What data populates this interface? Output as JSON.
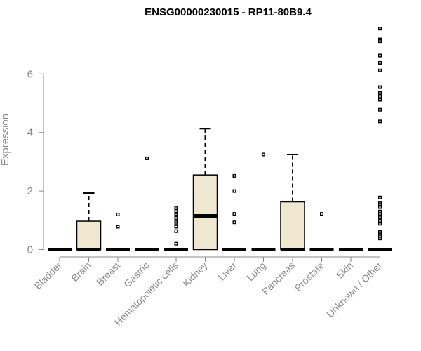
{
  "chart_data": {
    "type": "boxplot",
    "title": "ENSG00000230015 - RP11-80B9.4",
    "xlabel": "",
    "ylabel": "Expression",
    "ylim": [
      0,
      7.6
    ],
    "yticks": [
      0,
      2,
      4,
      6
    ],
    "box_fill": "#efe8cf",
    "categories": [
      "Bladder",
      "Brain",
      "Breast",
      "Gastric",
      "Hematopoietic cells",
      "Kidney",
      "Liver",
      "Lung",
      "Pancreas",
      "Prostate",
      "Skin",
      "Unknown / Other"
    ],
    "boxes": [
      {
        "q1": 0,
        "median": 0,
        "q3": 0,
        "whisker_low": 0,
        "whisker_high": 0,
        "outliers": []
      },
      {
        "q1": 0,
        "median": 0,
        "q3": 0.97,
        "whisker_low": 0,
        "whisker_high": 1.93,
        "outliers": []
      },
      {
        "q1": 0,
        "median": 0,
        "q3": 0,
        "whisker_low": 0,
        "whisker_high": 0,
        "outliers": [
          1.2,
          0.78
        ]
      },
      {
        "q1": 0,
        "median": 0,
        "q3": 0,
        "whisker_low": 0,
        "whisker_high": 0,
        "outliers": [
          3.12
        ]
      },
      {
        "q1": 0,
        "median": 0,
        "q3": 0,
        "whisker_low": 0,
        "whisker_high": 0,
        "outliers": [
          1.43,
          1.38,
          1.33,
          1.28,
          1.23,
          1.18,
          1.13,
          1.08,
          1.03,
          0.98,
          0.93,
          0.88,
          0.83,
          0.78,
          0.63,
          0.2
        ]
      },
      {
        "q1": 0,
        "median": 1.15,
        "q3": 2.55,
        "whisker_low": 0,
        "whisker_high": 4.13,
        "outliers": []
      },
      {
        "q1": 0,
        "median": 0,
        "q3": 0,
        "whisker_low": 0,
        "whisker_high": 0,
        "outliers": [
          2.52,
          2.0,
          1.22,
          0.93
        ]
      },
      {
        "q1": 0,
        "median": 0,
        "q3": 0,
        "whisker_low": 0,
        "whisker_high": 0,
        "outliers": [
          3.25
        ]
      },
      {
        "q1": 0,
        "median": 0,
        "q3": 1.63,
        "whisker_low": 0,
        "whisker_high": 3.25,
        "outliers": []
      },
      {
        "q1": 0,
        "median": 0,
        "q3": 0,
        "whisker_low": 0,
        "whisker_high": 0,
        "outliers": [
          1.22
        ]
      },
      {
        "q1": 0,
        "median": 0,
        "q3": 0,
        "whisker_low": 0,
        "whisker_high": 0,
        "outliers": []
      },
      {
        "q1": 0,
        "median": 0,
        "q3": 0,
        "whisker_low": 0,
        "whisker_high": 0,
        "outliers": [
          7.55,
          7.18,
          7.12,
          6.63,
          6.38,
          6.12,
          5.55,
          5.35,
          5.23,
          5.12,
          4.78,
          4.38,
          1.78,
          1.6,
          1.55,
          1.45,
          1.3,
          1.22,
          1.1,
          0.98,
          0.88,
          0.6,
          0.52,
          0.45,
          0.38
        ]
      }
    ]
  }
}
